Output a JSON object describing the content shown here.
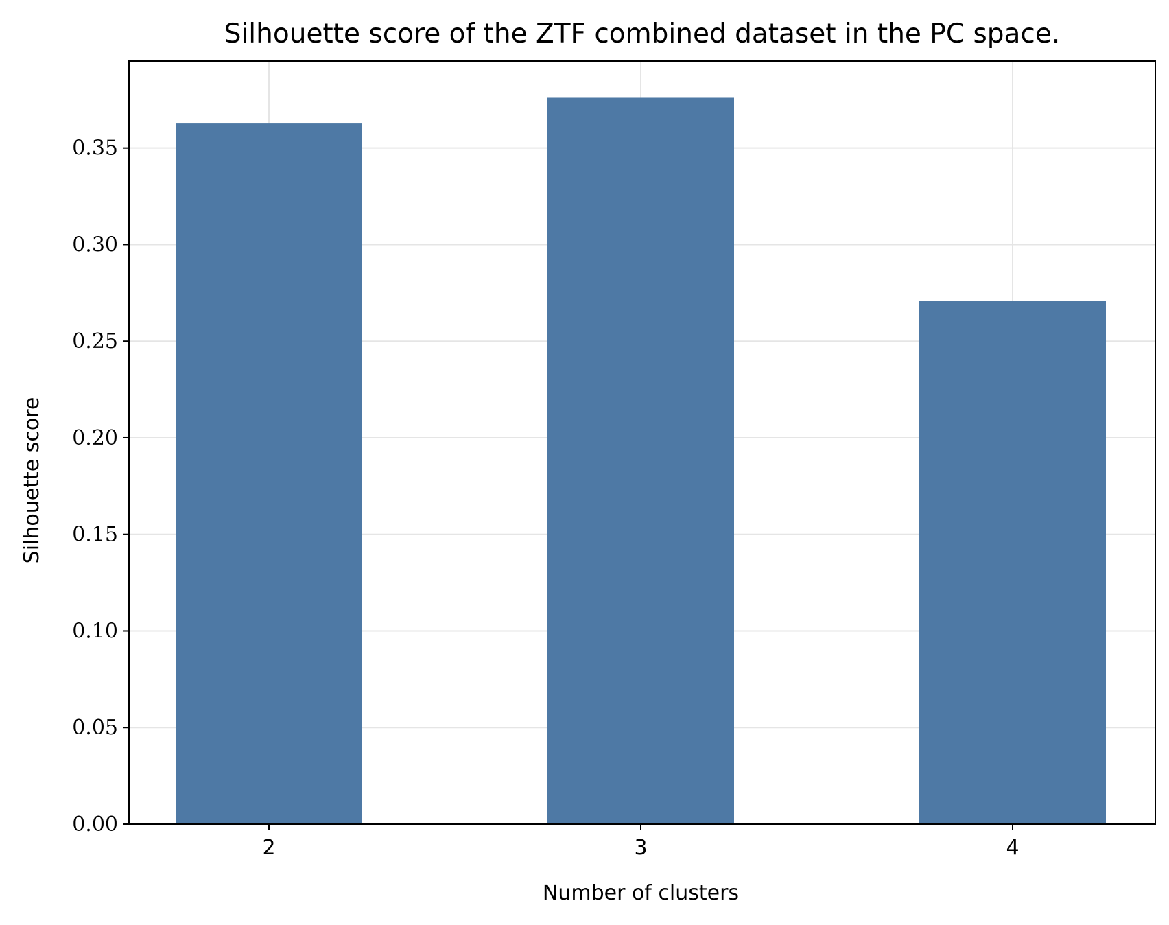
{
  "chart_data": {
    "type": "bar",
    "title": "Silhouette score of the ZTF combined dataset in the PC space.",
    "xlabel": "Number of clusters",
    "ylabel": "Silhouette score",
    "categories": [
      "2",
      "3",
      "4"
    ],
    "values": [
      0.363,
      0.376,
      0.271
    ],
    "ylim": [
      0,
      0.395
    ],
    "yticks": [
      0.0,
      0.05,
      0.1,
      0.15,
      0.2,
      0.25,
      0.3,
      0.35
    ],
    "ytick_labels": [
      "0.00",
      "0.05",
      "0.10",
      "0.15",
      "0.20",
      "0.25",
      "0.30",
      "0.35"
    ],
    "grid": true,
    "bar_color": "#4e79a5",
    "grid_color": "#e5e5e5"
  }
}
